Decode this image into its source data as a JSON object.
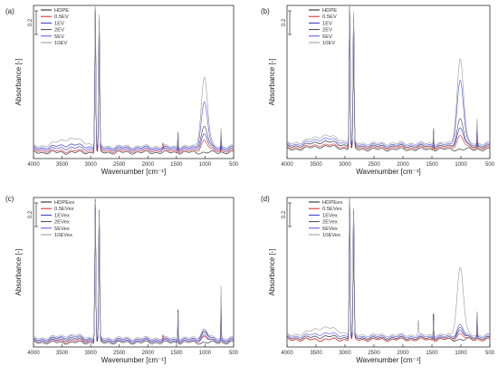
{
  "figure": {
    "panels": [
      {
        "letter": "(a)"
      },
      {
        "letter": "(b)"
      },
      {
        "letter": "(c)"
      },
      {
        "letter": "(d)"
      }
    ]
  },
  "chart_data": [
    {
      "type": "line",
      "panel": "(a)",
      "xlabel": "Wavenumber [cm⁻¹]",
      "ylabel": "Absorbance [-]",
      "xlim": [
        4000,
        500
      ],
      "ylim": [
        0,
        1
      ],
      "x_reversed": true,
      "xticks": [
        4000,
        3500,
        3000,
        2500,
        2000,
        1500,
        1000,
        500
      ],
      "scale_bar_label": "0.2",
      "legend_position": "top-left",
      "grid": false,
      "series": [
        {
          "name": "HDPE",
          "color": "#1a1a1a",
          "base": 0.04,
          "peaks": {
            "2919": 0.95,
            "2851": 0.86,
            "1472": 0.12,
            "720": 0.1
          },
          "hump1000": 0.0,
          "broad3300": 0.0
        },
        {
          "name": "0.5EV",
          "color": "#e02020",
          "base": 0.05,
          "peaks": {
            "2919": 0.9,
            "2851": 0.8,
            "1472": 0.08,
            "720": 0.08,
            "1735": 0.05
          },
          "hump1000": 0.07,
          "broad3300": 0.0
        },
        {
          "name": "1EV",
          "color": "#3030cc",
          "base": 0.06,
          "peaks": {
            "2919": 0.88,
            "2851": 0.78,
            "1472": 0.1,
            "720": 0.09
          },
          "hump1000": 0.1,
          "broad3300": 0.01
        },
        {
          "name": "2EV",
          "color": "#444444",
          "base": 0.07,
          "peaks": {
            "2919": 0.92,
            "2851": 0.82,
            "1472": 0.12,
            "720": 0.1
          },
          "hump1000": 0.14,
          "broad3300": 0.02
        },
        {
          "name": "5EV",
          "color": "#5050ee",
          "base": 0.07,
          "peaks": {
            "2919": 0.9,
            "2851": 0.8,
            "1472": 0.1,
            "720": 0.1
          },
          "hump1000": 0.3,
          "broad3300": 0.02
        },
        {
          "name": "10EV",
          "color": "#999999",
          "base": 0.08,
          "peaks": {
            "2919": 0.95,
            "2851": 0.85,
            "1472": 0.1,
            "720": 0.12
          },
          "hump1000": 0.45,
          "broad3300": 0.05
        }
      ]
    },
    {
      "type": "line",
      "panel": "(b)",
      "xlabel": "Wavenumber [cm⁻¹]",
      "ylabel": "Absorbance [-]",
      "xlim": [
        4000,
        500
      ],
      "ylim": [
        0,
        1
      ],
      "x_reversed": true,
      "xticks": [
        4000,
        3500,
        3000,
        2500,
        2000,
        1500,
        1000,
        500
      ],
      "scale_bar_label": "0.2",
      "legend_position": "top-center",
      "grid": false,
      "series": [
        {
          "name": "HDPE",
          "color": "#1a1a1a",
          "base": 0.06,
          "peaks": {
            "2919": 0.92,
            "2851": 0.84,
            "1472": 0.15,
            "720": 0.12
          },
          "hump1000": 0.0,
          "broad3300": 0.02
        },
        {
          "name": "0.5EV",
          "color": "#e02020",
          "base": 0.07,
          "peaks": {
            "2919": 0.88,
            "2851": 0.8,
            "1472": 0.1,
            "720": 0.1
          },
          "hump1000": 0.08,
          "broad3300": 0.02
        },
        {
          "name": "1EV",
          "color": "#3030cc",
          "base": 0.08,
          "peaks": {
            "2919": 0.9,
            "2851": 0.82,
            "1472": 0.12,
            "720": 0.12
          },
          "hump1000": 0.12,
          "broad3300": 0.03
        },
        {
          "name": "2EV",
          "color": "#444444",
          "base": 0.08,
          "peaks": {
            "2919": 0.92,
            "2851": 0.83,
            "1472": 0.12,
            "720": 0.14
          },
          "hump1000": 0.18,
          "broad3300": 0.03
        },
        {
          "name": "5EV",
          "color": "#5050ee",
          "base": 0.09,
          "peaks": {
            "2919": 0.9,
            "2851": 0.82,
            "1472": 0.12,
            "720": 0.14
          },
          "hump1000": 0.42,
          "broad3300": 0.04
        },
        {
          "name": "10EV",
          "color": "#999999",
          "base": 0.1,
          "peaks": {
            "2919": 0.93,
            "2851": 0.85,
            "1472": 0.12,
            "720": 0.16
          },
          "hump1000": 0.55,
          "broad3300": 0.05
        }
      ]
    },
    {
      "type": "line",
      "panel": "(c)",
      "xlabel": "Wavenumber [cm⁻¹]",
      "ylabel": "Absorbance [-]",
      "xlim": [
        4000,
        500
      ],
      "ylim": [
        0,
        1
      ],
      "x_reversed": true,
      "xticks": [
        4000,
        3500,
        3000,
        2500,
        2000,
        1500,
        1000,
        500
      ],
      "scale_bar_label": "0.2",
      "legend_position": "top-left",
      "grid": false,
      "series": [
        {
          "name": "HDPEex",
          "color": "#1a1a1a",
          "base": 0.03,
          "peaks": {
            "2919": 0.97,
            "2851": 0.88,
            "1472": 0.25,
            "720": 0.3
          },
          "hump1000": 0.0,
          "broad3300": 0.0
        },
        {
          "name": "0.5EVex",
          "color": "#e02020",
          "base": 0.04,
          "peaks": {
            "2919": 0.9,
            "2851": 0.82,
            "1472": 0.15,
            "720": 0.2,
            "1735": 0.04
          },
          "hump1000": 0.03,
          "broad3300": 0.0
        },
        {
          "name": "1EVex",
          "color": "#3030cc",
          "base": 0.04,
          "peaks": {
            "2919": 0.9,
            "2851": 0.82,
            "1472": 0.15,
            "720": 0.2
          },
          "hump1000": 0.04,
          "broad3300": 0.01
        },
        {
          "name": "2EVex",
          "color": "#444444",
          "base": 0.05,
          "peaks": {
            "2919": 0.92,
            "2851": 0.84,
            "1472": 0.15,
            "720": 0.22
          },
          "hump1000": 0.05,
          "broad3300": 0.01
        },
        {
          "name": "5EVex",
          "color": "#5050ee",
          "base": 0.05,
          "peaks": {
            "2919": 0.9,
            "2851": 0.82,
            "1472": 0.15,
            "720": 0.22
          },
          "hump1000": 0.06,
          "broad3300": 0.02
        },
        {
          "name": "10EVex",
          "color": "#999999",
          "base": 0.06,
          "peaks": {
            "2919": 0.92,
            "2851": 0.84,
            "1472": 0.2,
            "720": 0.35
          },
          "hump1000": 0.06,
          "broad3300": 0.02
        }
      ]
    },
    {
      "type": "line",
      "panel": "(d)",
      "xlabel": "Wavenumber [cm⁻¹]",
      "ylabel": "Absorbance [-]",
      "xlim": [
        4000,
        500
      ],
      "ylim": [
        0,
        1
      ],
      "x_reversed": true,
      "xticks": [
        4000,
        3500,
        3000,
        2500,
        2000,
        1500,
        1000,
        500
      ],
      "scale_bar_label": "0.2",
      "legend_position": "top-center",
      "grid": false,
      "series": [
        {
          "name": "HDPEex",
          "color": "#1a1a1a",
          "base": 0.05,
          "peaks": {
            "2919": 0.95,
            "2851": 0.86,
            "1472": 0.2,
            "720": 0.18
          },
          "hump1000": 0.0,
          "broad3300": 0.0
        },
        {
          "name": "0.5EVex",
          "color": "#e02020",
          "base": 0.05,
          "peaks": {
            "2919": 0.88,
            "2851": 0.8,
            "1472": 0.12,
            "720": 0.12
          },
          "hump1000": 0.04,
          "broad3300": 0.0
        },
        {
          "name": "1EVex",
          "color": "#3030cc",
          "base": 0.06,
          "peaks": {
            "2919": 0.9,
            "2851": 0.82,
            "1472": 0.15,
            "720": 0.15
          },
          "hump1000": 0.05,
          "broad3300": 0.01
        },
        {
          "name": "2EVex",
          "color": "#444444",
          "base": 0.06,
          "peaks": {
            "2919": 0.92,
            "2851": 0.84,
            "1472": 0.15,
            "720": 0.16
          },
          "hump1000": 0.07,
          "broad3300": 0.01
        },
        {
          "name": "5EVex",
          "color": "#5050ee",
          "base": 0.07,
          "peaks": {
            "2919": 0.9,
            "2851": 0.82,
            "1472": 0.15,
            "720": 0.16
          },
          "hump1000": 0.08,
          "broad3300": 0.02
        },
        {
          "name": "10EVex",
          "color": "#999999",
          "base": 0.08,
          "peaks": {
            "2919": 0.92,
            "2851": 0.84,
            "1472": 0.12,
            "720": 0.16,
            "1735": 0.1
          },
          "hump1000": 0.45,
          "broad3300": 0.05
        }
      ]
    }
  ]
}
